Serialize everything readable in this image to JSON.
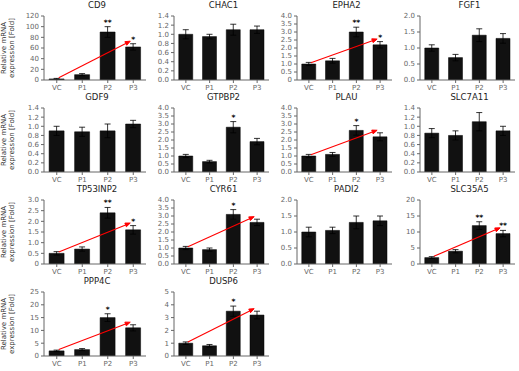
{
  "chart_data": [
    {
      "type": "bar",
      "title": "CD9",
      "ylabel": "Relative mRNA\nexpression [Fold]",
      "categories": [
        "VC",
        "P1",
        "P2",
        "P3"
      ],
      "values": [
        2,
        10,
        90,
        62
      ],
      "errors": [
        1,
        2,
        10,
        6
      ],
      "color": "#111111",
      "ylim": [
        0,
        120
      ],
      "yticks": [
        0,
        20,
        40,
        60,
        80,
        100,
        120
      ],
      "grid": false,
      "annotations": [
        {
          "text": "**",
          "category": "P2"
        },
        {
          "text": "*",
          "category": "P3"
        },
        {
          "type": "arrow",
          "from": "VC",
          "to": "P3",
          "color": "red"
        }
      ]
    },
    {
      "type": "bar",
      "title": "CHAC1",
      "categories": [
        "VC",
        "P1",
        "P2",
        "P3"
      ],
      "values": [
        1.0,
        0.95,
        1.1,
        1.1
      ],
      "errors": [
        0.1,
        0.05,
        0.12,
        0.08
      ],
      "color": "#111111",
      "ylim": [
        0,
        1.4
      ],
      "yticks": [
        {
          "value": 0,
          "label": "0.0"
        },
        0.2,
        0.4,
        0.6,
        0.8,
        {
          "value": 1,
          "label": "1.0"
        },
        1.2,
        1.4
      ],
      "grid": false
    },
    {
      "type": "bar",
      "title": "EPHA2",
      "categories": [
        "VC",
        "P1",
        "P2",
        "P3"
      ],
      "values": [
        1.0,
        1.2,
        3.0,
        2.2
      ],
      "errors": [
        0.1,
        0.15,
        0.3,
        0.2
      ],
      "color": "#111111",
      "ylim": [
        0,
        4
      ],
      "yticks": [
        0,
        0.5,
        {
          "value": 1,
          "label": "1.0"
        },
        1.5,
        {
          "value": 2,
          "label": "2.0"
        },
        2.5,
        {
          "value": 3,
          "label": "3.0"
        },
        3.5,
        {
          "value": 4,
          "label": "4.0"
        }
      ],
      "grid": false,
      "annotations": [
        {
          "text": "**",
          "category": "P2"
        },
        {
          "text": "*",
          "category": "P3"
        },
        {
          "type": "arrow",
          "from": "VC",
          "to": "P3",
          "color": "red"
        }
      ]
    },
    {
      "type": "bar",
      "title": "FGF1",
      "categories": [
        "VC",
        "P1",
        "P2",
        "P3"
      ],
      "values": [
        1.0,
        0.7,
        1.4,
        1.3
      ],
      "errors": [
        0.1,
        0.1,
        0.2,
        0.15
      ],
      "color": "#111111",
      "ylim": [
        0,
        2.0
      ],
      "yticks": [
        {
          "value": 0,
          "label": "0.0"
        },
        0.5,
        {
          "value": 1,
          "label": "1.0"
        },
        1.5,
        {
          "value": 2,
          "label": "2.0"
        }
      ],
      "grid": false
    },
    {
      "type": "bar",
      "title": "GDF9",
      "ylabel": "Relative mRNA\nexpression [Fold]",
      "categories": [
        "VC",
        "P1",
        "P2",
        "P3"
      ],
      "values": [
        0.9,
        0.88,
        0.9,
        1.05
      ],
      "errors": [
        0.1,
        0.1,
        0.15,
        0.08
      ],
      "color": "#111111",
      "ylim": [
        0,
        1.4
      ],
      "yticks": [
        {
          "value": 0,
          "label": "0.0"
        },
        0.2,
        0.4,
        0.6,
        0.8,
        {
          "value": 1,
          "label": "1.0"
        },
        1.2,
        1.4
      ],
      "grid": false
    },
    {
      "type": "bar",
      "title": "GTPBP2",
      "categories": [
        "VC",
        "P1",
        "P2",
        "P3"
      ],
      "values": [
        1.0,
        0.65,
        2.8,
        1.9
      ],
      "errors": [
        0.1,
        0.08,
        0.35,
        0.2
      ],
      "color": "#111111",
      "ylim": [
        0,
        4.0
      ],
      "yticks": [
        {
          "value": 0,
          "label": "0.0"
        },
        0.5,
        {
          "value": 1,
          "label": "1.0"
        },
        1.5,
        {
          "value": 2,
          "label": "2.0"
        },
        2.5,
        {
          "value": 3,
          "label": "3.0"
        },
        3.5,
        {
          "value": 4,
          "label": "4.0"
        }
      ],
      "grid": false,
      "annotations": [
        {
          "text": "*",
          "category": "P2"
        }
      ]
    },
    {
      "type": "bar",
      "title": "PLAU",
      "categories": [
        "VC",
        "P1",
        "P2",
        "P3"
      ],
      "values": [
        1.0,
        1.1,
        2.6,
        2.2
      ],
      "errors": [
        0.1,
        0.12,
        0.3,
        0.25
      ],
      "color": "#111111",
      "ylim": [
        0,
        4.0
      ],
      "yticks": [
        {
          "value": 0,
          "label": "0.0"
        },
        0.5,
        {
          "value": 1,
          "label": "1.0"
        },
        1.5,
        {
          "value": 2,
          "label": "2.0"
        },
        2.5,
        {
          "value": 3,
          "label": "3.0"
        },
        3.5,
        {
          "value": 4,
          "label": "4.0"
        }
      ],
      "grid": false,
      "annotations": [
        {
          "text": "*",
          "category": "P2"
        },
        {
          "type": "arrow",
          "from": "VC",
          "to": "P3",
          "color": "red"
        }
      ]
    },
    {
      "type": "bar",
      "title": "SLC7A11",
      "categories": [
        "VC",
        "P1",
        "P2",
        "P3"
      ],
      "values": [
        0.85,
        0.8,
        1.1,
        0.9
      ],
      "errors": [
        0.1,
        0.1,
        0.2,
        0.1
      ],
      "color": "#111111",
      "ylim": [
        0,
        1.4
      ],
      "yticks": [
        {
          "value": 0,
          "label": "0.0"
        },
        0.2,
        0.4,
        0.6,
        0.8,
        {
          "value": 1,
          "label": "1.0"
        },
        1.2,
        1.4
      ],
      "grid": false
    },
    {
      "type": "bar",
      "title": "TP53INP2",
      "ylabel": "Relative mRNA\nexpression [Fold]",
      "categories": [
        "VC",
        "P1",
        "P2",
        "P3"
      ],
      "values": [
        0.5,
        0.7,
        2.4,
        1.6
      ],
      "errors": [
        0.08,
        0.1,
        0.25,
        0.2
      ],
      "color": "#111111",
      "ylim": [
        0,
        3.0
      ],
      "yticks": [
        0,
        0.5,
        {
          "value": 1,
          "label": "1.0"
        },
        1.5,
        {
          "value": 2,
          "label": "2.0"
        },
        2.5,
        {
          "value": 3,
          "label": "3.0"
        }
      ],
      "grid": false,
      "annotations": [
        {
          "text": "**",
          "category": "P2"
        },
        {
          "text": "*",
          "category": "P3"
        },
        {
          "type": "arrow",
          "from": "VC",
          "to": "P3",
          "color": "red"
        }
      ]
    },
    {
      "type": "bar",
      "title": "CYR61",
      "categories": [
        "VC",
        "P1",
        "P2",
        "P3"
      ],
      "values": [
        1.0,
        0.9,
        3.1,
        2.6
      ],
      "errors": [
        0.1,
        0.1,
        0.3,
        0.2
      ],
      "color": "#111111",
      "ylim": [
        0,
        4.0
      ],
      "yticks": [
        {
          "value": 0,
          "label": "0.0"
        },
        0.5,
        {
          "value": 1,
          "label": "1.0"
        },
        1.5,
        {
          "value": 2,
          "label": "2.0"
        },
        2.5,
        {
          "value": 3,
          "label": "3.0"
        },
        3.5,
        {
          "value": 4,
          "label": "4.0"
        }
      ],
      "grid": false,
      "annotations": [
        {
          "text": "*",
          "category": "P2"
        },
        {
          "type": "arrow",
          "from": "VC",
          "to": "P3",
          "color": "red"
        }
      ]
    },
    {
      "type": "bar",
      "title": "PADI2",
      "categories": [
        "VC",
        "P1",
        "P2",
        "P3"
      ],
      "values": [
        1.0,
        1.05,
        1.3,
        1.35
      ],
      "errors": [
        0.15,
        0.1,
        0.2,
        0.15
      ],
      "color": "#111111",
      "ylim": [
        0,
        2.0
      ],
      "yticks": [
        {
          "value": 0,
          "label": "0.0"
        },
        0.5,
        {
          "value": 1,
          "label": "1.0"
        },
        1.5,
        {
          "value": 2,
          "label": "2.0"
        }
      ],
      "grid": false
    },
    {
      "type": "bar",
      "title": "SLC35A5",
      "categories": [
        "VC",
        "P1",
        "P2",
        "P3"
      ],
      "values": [
        2.0,
        4.0,
        12.0,
        9.5
      ],
      "errors": [
        0.3,
        0.5,
        1.2,
        1.0
      ],
      "color": "#111111",
      "ylim": [
        0,
        20
      ],
      "yticks": [
        0,
        5,
        10,
        15,
        20
      ],
      "grid": false,
      "annotations": [
        {
          "text": "**",
          "category": "P2"
        },
        {
          "text": "**",
          "category": "P3"
        },
        {
          "type": "arrow",
          "from": "VC",
          "to": "P3",
          "color": "red"
        }
      ]
    },
    {
      "type": "bar",
      "title": "PPP4C",
      "ylabel": "Relative mRNA\nexpression [Fold]",
      "categories": [
        "VC",
        "P1",
        "P2",
        "P3"
      ],
      "values": [
        2.0,
        2.5,
        15.0,
        11.0
      ],
      "errors": [
        0.3,
        0.4,
        1.5,
        1.2
      ],
      "color": "#111111",
      "ylim": [
        0,
        25
      ],
      "yticks": [
        0,
        5,
        10,
        15,
        20,
        25
      ],
      "grid": false,
      "annotations": [
        {
          "text": "*",
          "category": "P2"
        },
        {
          "type": "arrow",
          "from": "VC",
          "to": "P3",
          "color": "red"
        }
      ]
    },
    {
      "type": "bar",
      "title": "DUSP6",
      "categories": [
        "VC",
        "P1",
        "P2",
        "P3"
      ],
      "values": [
        1.0,
        0.8,
        3.5,
        3.2
      ],
      "errors": [
        0.1,
        0.1,
        0.4,
        0.3
      ],
      "color": "#111111",
      "ylim": [
        0,
        5
      ],
      "yticks": [
        0,
        1,
        2,
        3,
        4,
        5
      ],
      "grid": false,
      "annotations": [
        {
          "text": "*",
          "category": "P2"
        },
        {
          "type": "arrow",
          "from": "VC",
          "to": "P3",
          "color": "red"
        }
      ]
    }
  ]
}
